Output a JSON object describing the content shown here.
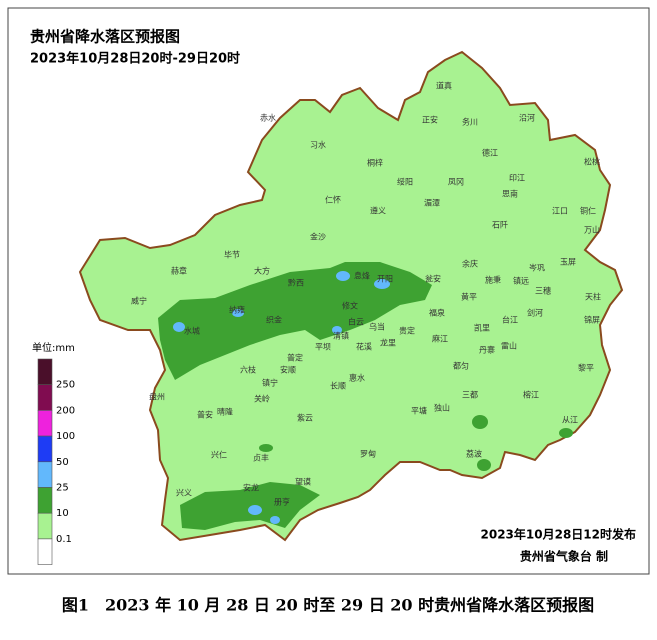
{
  "header": {
    "title": "贵州省降水落区预报图",
    "subtitle": "2023年10月28日20时-29日20时"
  },
  "legend": {
    "unit": "单位:mm",
    "labels": [
      "250",
      "200",
      "100",
      "50",
      "25",
      "10",
      "0.1"
    ],
    "colors": [
      "#4a0f2a",
      "#800c50",
      "#ee22dd",
      "#1e3cf5",
      "#62b8fc",
      "#3ea232",
      "#a8f291",
      "#ffffff"
    ]
  },
  "places": [
    "赤水",
    "习水",
    "道真",
    "正安",
    "务川",
    "沿河",
    "桐梓",
    "绥阳",
    "凤冈",
    "德江",
    "印江",
    "松桃",
    "思南",
    "仁怀",
    "遵义",
    "湄潭",
    "江口",
    "铜仁",
    "万山",
    "石阡",
    "金沙",
    "余庆",
    "玉屏",
    "毕节",
    "大方",
    "黔西",
    "息烽",
    "开阳",
    "瓮安",
    "镇远",
    "岑巩",
    "三穗",
    "天柱",
    "赫章",
    "威宁",
    "织金",
    "清镇",
    "修文",
    "施秉",
    "黄平",
    "福泉",
    "剑河",
    "锦屏",
    "纳雍",
    "水城",
    "白云",
    "乌当",
    "龙里",
    "凯里",
    "台江",
    "麻江",
    "平坝",
    "花溪",
    "贵定",
    "六枝",
    "普定",
    "安顺",
    "丹寨",
    "雷山",
    "榕江",
    "黎平",
    "镇宁",
    "长顺",
    "惠水",
    "都匀",
    "三都",
    "从江",
    "盘州",
    "关岭",
    "普安",
    "晴隆",
    "紫云",
    "平塘",
    "独山",
    "荔波",
    "兴仁",
    "贞丰",
    "罗甸",
    "兴义",
    "安龙",
    "望谟",
    "册亨"
  ],
  "footer": {
    "issued": "2023年10月28日12时发布",
    "agency": "贵州省气象台 制"
  },
  "caption": "图1　2023 年 10 月 28 日 20 时至 29 日 20 时贵州省降水落区预报图"
}
